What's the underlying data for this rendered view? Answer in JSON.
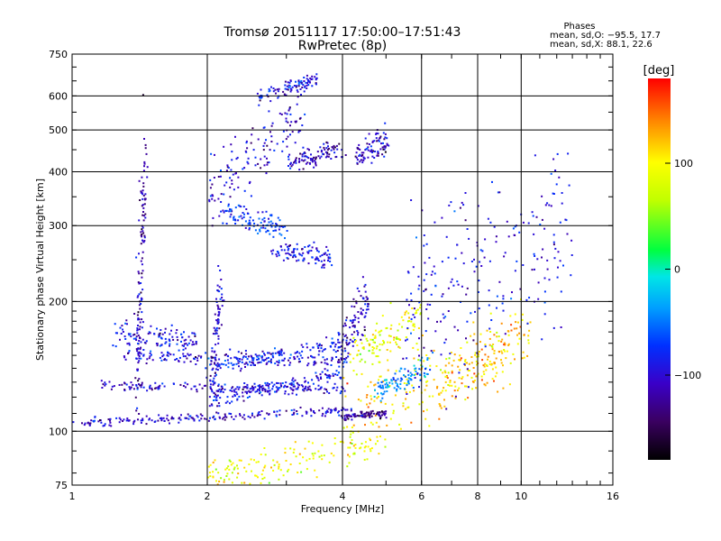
{
  "header": {
    "title": "Tromsø 20151117 17:50:00–17:51:43",
    "subtitle": "RwPretec (8p)"
  },
  "stats": {
    "heading": "Phases",
    "line_o": "mean, sd,O:  −95.5, 17.7",
    "line_x": "mean, sd,X:  88.1, 22.6"
  },
  "colorbar": {
    "unit_label": "[deg]",
    "tick_labels": [
      "100",
      "0",
      "−100"
    ],
    "tick_values": [
      100,
      0,
      -100
    ],
    "range": [
      -180,
      180
    ]
  },
  "chart_data": {
    "type": "scatter",
    "title": "Tromsø 20151117 17:50:00–17:51:43",
    "subtitle": "RwPretec (8p)",
    "xlabel": "Frequency [MHz]",
    "ylabel": "Stationary phase Virtual Height [km]",
    "x_scale": "log",
    "y_scale": "log",
    "xlim": [
      1,
      16
    ],
    "ylim": [
      75,
      750
    ],
    "xticks": [
      1,
      2,
      4,
      6,
      8,
      10,
      16
    ],
    "xtick_labels": [
      "1",
      "2",
      "4",
      "6",
      "8",
      "10",
      "16"
    ],
    "yticks": [
      75,
      100,
      200,
      300,
      400,
      500,
      600,
      750
    ],
    "ytick_labels": [
      "75",
      "100",
      "200",
      "300",
      "400",
      "500",
      "600",
      "750"
    ],
    "x_gridlines": [
      2,
      4,
      6,
      8,
      10
    ],
    "y_gridlines": [
      100,
      200,
      300,
      400,
      500,
      600
    ],
    "grid": true,
    "color_scale": "phase [deg], rainbow from −180 (black/purple) to +180 (red)",
    "traces": [
      {
        "name": "",
        "phase": -110,
        "x_start": 1.0,
        "x_end": 4.2,
        "h_start": 104,
        "h_end": 112,
        "spread": 0.012
      },
      {
        "name": "",
        "phase": -110,
        "x_start": 1.15,
        "x_end": 4.0,
        "h_start": 128,
        "h_end": 125,
        "spread": 0.015
      },
      {
        "name": "",
        "phase": -100,
        "x_start": 1.3,
        "x_end": 4.1,
        "h_start": 150,
        "h_end": 145,
        "spread": 0.02
      },
      {
        "name": "",
        "phase": -100,
        "x_start": 1.25,
        "x_end": 1.9,
        "h_start": 170,
        "h_end": 160,
        "spread": 0.03
      },
      {
        "name": "",
        "phase": -95,
        "x_start": 2.05,
        "x_end": 4.0,
        "h_start": 118,
        "h_end": 135,
        "spread": 0.02
      },
      {
        "name": "",
        "phase": -90,
        "x_start": 2.0,
        "x_end": 4.0,
        "h_start": 140,
        "h_end": 160,
        "spread": 0.02
      },
      {
        "name": "",
        "phase": -110,
        "x_start": 2.05,
        "x_end": 2.15,
        "h_start": 120,
        "h_end": 230,
        "spread": 0.05
      },
      {
        "name": "",
        "phase": -110,
        "x_start": 2.0,
        "x_end": 3.3,
        "h_start": 340,
        "h_end": 560,
        "spread": 0.09
      },
      {
        "name": "",
        "phase": -100,
        "x_start": 2.6,
        "x_end": 3.5,
        "h_start": 600,
        "h_end": 660,
        "spread": 0.02
      },
      {
        "name": "",
        "phase": -80,
        "x_start": 2.2,
        "x_end": 3.0,
        "h_start": 320,
        "h_end": 295,
        "spread": 0.03
      },
      {
        "name": "",
        "phase": -100,
        "x_start": 2.8,
        "x_end": 3.8,
        "h_start": 265,
        "h_end": 250,
        "spread": 0.03
      },
      {
        "name": "",
        "phase": -120,
        "x_start": 3.0,
        "x_end": 4.0,
        "h_start": 420,
        "h_end": 450,
        "spread": 0.03
      },
      {
        "name": "",
        "phase": -110,
        "x_start": 4.3,
        "x_end": 5.0,
        "h_start": 430,
        "h_end": 470,
        "spread": 0.04
      },
      {
        "name": "",
        "phase": -110,
        "x_start": 3.9,
        "x_end": 4.6,
        "h_start": 150,
        "h_end": 210,
        "spread": 0.07
      },
      {
        "name": "",
        "phase": 110,
        "x_start": 4.0,
        "x_end": 9.5,
        "h_start": 110,
        "h_end": 150,
        "spread": 0.1
      },
      {
        "name": "",
        "phase": 90,
        "x_start": 4.2,
        "x_end": 6.0,
        "h_start": 150,
        "h_end": 180,
        "spread": 0.06
      },
      {
        "name": "",
        "phase": 120,
        "x_start": 6.5,
        "x_end": 10.5,
        "h_start": 125,
        "h_end": 175,
        "spread": 0.08
      },
      {
        "name": "",
        "phase": -40,
        "x_start": 4.8,
        "x_end": 6.2,
        "h_start": 125,
        "h_end": 140,
        "spread": 0.03
      },
      {
        "name": "",
        "phase": -130,
        "x_start": 4.0,
        "x_end": 5.0,
        "h_start": 108,
        "h_end": 110,
        "spread": 0.01
      },
      {
        "name": "",
        "phase": 90,
        "x_start": 2.0,
        "x_end": 5.0,
        "h_start": 78,
        "h_end": 95,
        "spread": 0.05
      },
      {
        "name": "",
        "phase": -120,
        "x_start": 1.4,
        "x_end": 1.45,
        "h_start": 130,
        "h_end": 420,
        "spread": 0.15
      },
      {
        "name": "",
        "phase": -100,
        "x_start": 5.5,
        "x_end": 13.0,
        "h_start": 180,
        "h_end": 300,
        "spread": 0.25
      }
    ]
  }
}
